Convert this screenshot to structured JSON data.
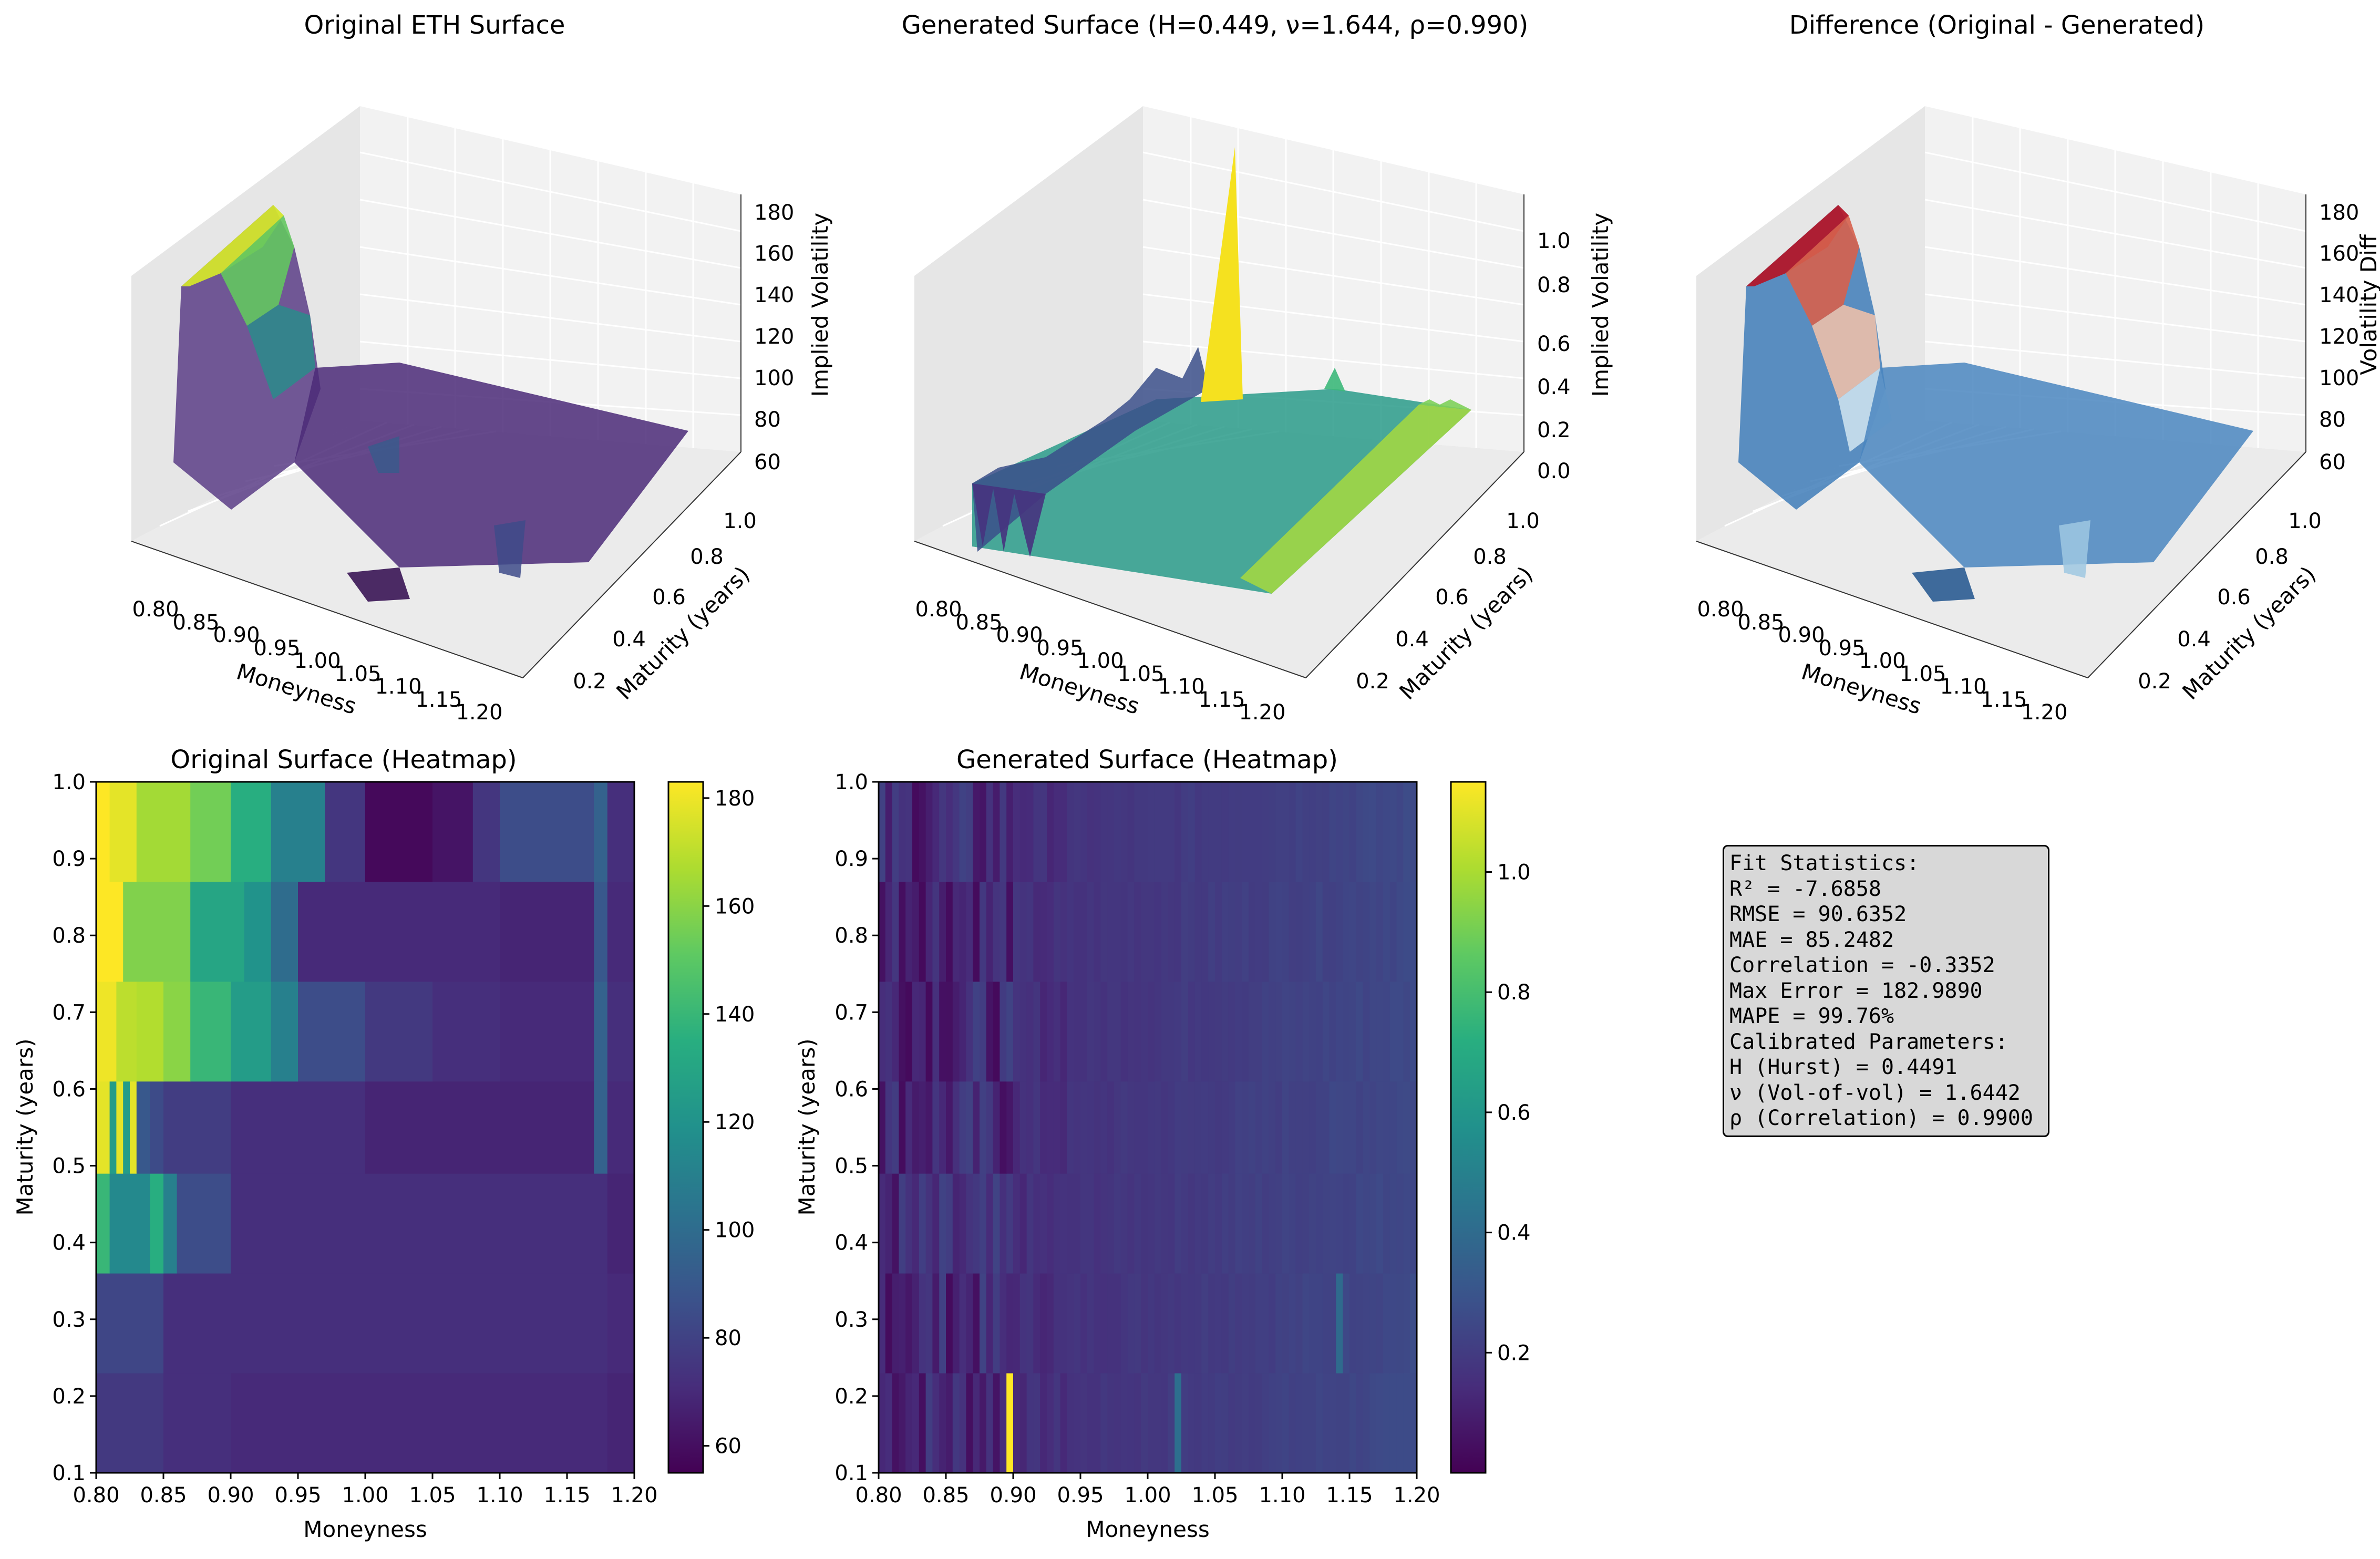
{
  "chart_data": [
    {
      "type": "surface3d",
      "title": "Original ETH Surface",
      "xlabel": "Moneyness",
      "ylabel": "Maturity (years)",
      "zlabel": "Implied Volatility",
      "x_ticks": [
        "0.80",
        "0.85",
        "0.90",
        "0.95",
        "1.00",
        "1.05",
        "1.10",
        "1.15",
        "1.20"
      ],
      "y_ticks": [
        "0.2",
        "0.4",
        "0.6",
        "0.8",
        "1.0"
      ],
      "z_ticks": [
        "60",
        "80",
        "100",
        "120",
        "140",
        "160",
        "180"
      ],
      "colormap": "viridis",
      "xlim": [
        0.8,
        1.2
      ],
      "ylim": [
        0.1,
        1.0
      ],
      "zlim": [
        55,
        183
      ]
    },
    {
      "type": "surface3d",
      "title": "Generated Surface (H=0.449, ν=1.644, ρ=0.990)",
      "xlabel": "Moneyness",
      "ylabel": "Maturity (years)",
      "zlabel": "Implied Volatility",
      "x_ticks": [
        "0.80",
        "0.85",
        "0.90",
        "0.95",
        "1.00",
        "1.05",
        "1.10",
        "1.15",
        "1.20"
      ],
      "y_ticks": [
        "0.2",
        "0.4",
        "0.6",
        "0.8",
        "1.0"
      ],
      "z_ticks": [
        "0.0",
        "0.2",
        "0.4",
        "0.6",
        "0.8",
        "1.0"
      ],
      "colormap": "viridis",
      "xlim": [
        0.8,
        1.2
      ],
      "ylim": [
        0.1,
        1.0
      ],
      "zlim": [
        0.0,
        1.15
      ]
    },
    {
      "type": "surface3d",
      "title": "Difference (Original - Generated)",
      "xlabel": "Moneyness",
      "ylabel": "Maturity (years)",
      "zlabel": "Volatility Diff",
      "x_ticks": [
        "0.80",
        "0.85",
        "0.90",
        "0.95",
        "1.00",
        "1.05",
        "1.10",
        "1.15",
        "1.20"
      ],
      "y_ticks": [
        "0.2",
        "0.4",
        "0.6",
        "0.8",
        "1.0"
      ],
      "z_ticks": [
        "60",
        "80",
        "100",
        "120",
        "140",
        "160",
        "180"
      ],
      "colormap": "RdBu_r",
      "xlim": [
        0.8,
        1.2
      ],
      "ylim": [
        0.1,
        1.0
      ],
      "zlim": [
        55,
        183
      ]
    },
    {
      "type": "heatmap",
      "title": "Original Surface (Heatmap)",
      "xlabel": "Moneyness",
      "ylabel": "Maturity (years)",
      "x_ticks": [
        "0.80",
        "0.85",
        "0.90",
        "0.95",
        "1.00",
        "1.05",
        "1.10",
        "1.15",
        "1.20"
      ],
      "y_ticks": [
        "0.1",
        "0.2",
        "0.3",
        "0.4",
        "0.5",
        "0.6",
        "0.7",
        "0.8",
        "0.9",
        "1.0"
      ],
      "colorbar_ticks": [
        "60",
        "80",
        "100",
        "120",
        "140",
        "160",
        "180"
      ],
      "colormap": "viridis",
      "xlim": [
        0.8,
        1.2
      ],
      "ylim": [
        0.1,
        1.0
      ],
      "vmin": 55,
      "vmax": 183,
      "maturities": [
        0.1,
        0.23,
        0.36,
        0.49,
        0.61,
        0.74,
        0.87,
        1.0
      ],
      "bands": [
        {
          "maturity": [
            0.1,
            0.23
          ],
          "breaks": [
            0.8,
            0.85,
            0.9,
            1.18,
            1.2
          ],
          "values": [
            76,
            72,
            70,
            68
          ]
        },
        {
          "maturity": [
            0.23,
            0.36
          ],
          "breaks": [
            0.8,
            0.85,
            1.18,
            1.2
          ],
          "values": [
            82,
            72,
            70
          ]
        },
        {
          "maturity": [
            0.36,
            0.49
          ],
          "breaks": [
            0.8,
            0.81,
            0.84,
            0.85,
            0.86,
            0.9,
            1.18,
            1.2
          ],
          "values": [
            140,
            115,
            135,
            110,
            85,
            72,
            68
          ]
        },
        {
          "maturity": [
            0.49,
            0.61
          ],
          "breaks": [
            0.8,
            0.81,
            0.815,
            0.82,
            0.825,
            0.83,
            0.84,
            0.85,
            0.9,
            1.0,
            1.17,
            1.18,
            1.2
          ],
          "values": [
            178,
            125,
            178,
            125,
            178,
            90,
            84,
            78,
            72,
            68,
            95,
            70
          ]
        },
        {
          "maturity": [
            0.61,
            0.74
          ],
          "breaks": [
            0.8,
            0.815,
            0.83,
            0.85,
            0.87,
            0.9,
            0.93,
            0.95,
            1.0,
            1.05,
            1.1,
            1.17,
            1.18,
            1.2
          ],
          "values": [
            180,
            170,
            168,
            160,
            140,
            125,
            110,
            85,
            76,
            72,
            70,
            95,
            72
          ]
        },
        {
          "maturity": [
            0.74,
            0.87
          ],
          "breaks": [
            0.8,
            0.82,
            0.87,
            0.91,
            0.93,
            0.95,
            1.1,
            1.17,
            1.18,
            1.2
          ],
          "values": [
            183,
            158,
            130,
            120,
            100,
            70,
            68,
            90,
            70
          ]
        },
        {
          "maturity": [
            0.87,
            1.0
          ],
          "breaks": [
            0.8,
            0.81,
            0.83,
            0.87,
            0.9,
            0.93,
            0.97,
            1.0,
            1.05,
            1.08,
            1.1,
            1.17,
            1.18,
            1.2
          ],
          "values": [
            183,
            178,
            165,
            155,
            135,
            110,
            75,
            58,
            62,
            75,
            85,
            95,
            72
          ]
        }
      ]
    },
    {
      "type": "heatmap",
      "title": "Generated Surface (Heatmap)",
      "xlabel": "Moneyness",
      "ylabel": "Maturity (years)",
      "x_ticks": [
        "0.80",
        "0.85",
        "0.90",
        "0.95",
        "1.00",
        "1.05",
        "1.10",
        "1.15",
        "1.20"
      ],
      "y_ticks": [
        "0.1",
        "0.2",
        "0.3",
        "0.4",
        "0.5",
        "0.6",
        "0.7",
        "0.8",
        "0.9",
        "1.0"
      ],
      "colorbar_ticks": [
        "0.2",
        "0.4",
        "0.6",
        "0.8",
        "1.0"
      ],
      "colormap": "viridis",
      "xlim": [
        0.8,
        1.2
      ],
      "ylim": [
        0.1,
        1.0
      ],
      "vmin": 0.0,
      "vmax": 1.15,
      "maturities": [
        0.1,
        0.23,
        0.36,
        0.49,
        0.61,
        0.74,
        0.87,
        1.0
      ],
      "hotspots": [
        {
          "moneyness": [
            0.895,
            0.9
          ],
          "maturity": [
            0.1,
            0.23
          ],
          "value": 1.15
        },
        {
          "moneyness": [
            1.02,
            1.025
          ],
          "maturity": [
            0.1,
            0.23
          ],
          "value": 0.42
        },
        {
          "moneyness": [
            1.14,
            1.145
          ],
          "maturity": [
            0.23,
            0.36
          ],
          "value": 0.4
        }
      ]
    }
  ],
  "stats": {
    "lines": [
      "Fit Statistics:",
      "",
      "R² = -7.6858",
      "RMSE = 90.6352",
      "MAE = 85.2482",
      "Correlation = -0.3352",
      "Max Error = 182.9890",
      "MAPE = 99.76%",
      "",
      "Calibrated Parameters:",
      "H (Hurst) = 0.4491",
      "ν (Vol-of-vol) = 1.6442",
      "ρ (Correlation) = 0.9900"
    ]
  }
}
